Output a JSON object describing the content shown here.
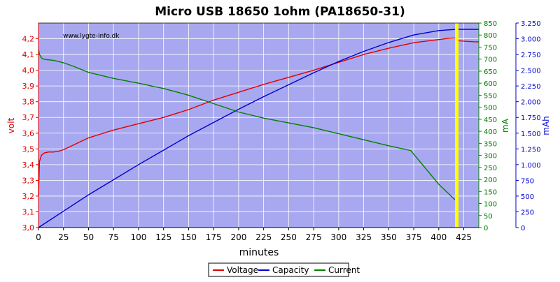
{
  "chart_data": {
    "type": "line",
    "title": "Micro USB 18650 1ohm (PA18650-31)",
    "watermark": "www.lygte-info.dk",
    "xlabel": "minutes",
    "xlim": [
      0,
      440
    ],
    "xticks": [
      0,
      25,
      50,
      75,
      100,
      125,
      150,
      175,
      200,
      225,
      250,
      275,
      300,
      325,
      350,
      375,
      400,
      425
    ],
    "grid": true,
    "legend_placement": "bottom-center",
    "plot_background": "#a8a8f0",
    "marker": {
      "x": 418,
      "color": "#ffff00"
    },
    "axes": {
      "left": {
        "label": "volt",
        "color": "#e00000",
        "lim": [
          3.0,
          4.3
        ],
        "ticks": [
          "3,0",
          "3,1",
          "3,2",
          "3,3",
          "3,4",
          "3,5",
          "3,6",
          "3,7",
          "3,8",
          "3,9",
          "4,0",
          "4,1",
          "4,2"
        ],
        "tick_values": [
          3.0,
          3.1,
          3.2,
          3.3,
          3.4,
          3.5,
          3.6,
          3.7,
          3.8,
          3.9,
          4.0,
          4.1,
          4.2
        ]
      },
      "right1": {
        "label": "mA",
        "color": "#008000",
        "lim": [
          0,
          850
        ],
        "ticks": [
          "0",
          "50",
          "100",
          "150",
          "200",
          "250",
          "300",
          "350",
          "400",
          "450",
          "500",
          "550",
          "600",
          "650",
          "700",
          "750",
          "800",
          "850"
        ],
        "tick_values": [
          0,
          50,
          100,
          150,
          200,
          250,
          300,
          350,
          400,
          450,
          500,
          550,
          600,
          650,
          700,
          750,
          800,
          850
        ]
      },
      "right2": {
        "label": "mAh",
        "color": "#0000cc",
        "lim": [
          0,
          3.25
        ],
        "ticks": [
          "0",
          "250",
          "500",
          "750",
          "1.000",
          "1.250",
          "1.500",
          "1.750",
          "2.000",
          "2.250",
          "2.500",
          "2.750",
          "3.000",
          "3.250"
        ],
        "tick_values": [
          0,
          0.25,
          0.5,
          0.75,
          1.0,
          1.25,
          1.5,
          1.75,
          2.0,
          2.25,
          2.5,
          2.75,
          3.0,
          3.25
        ]
      }
    },
    "series": [
      {
        "name": "Voltage",
        "color": "#e00000",
        "axis": "left",
        "x": [
          0,
          1,
          3,
          6,
          10,
          15,
          20,
          25,
          30,
          40,
          50,
          60,
          75,
          100,
          125,
          150,
          175,
          200,
          225,
          250,
          275,
          300,
          325,
          350,
          375,
          400,
          410,
          415,
          418,
          419,
          420,
          425,
          430,
          435,
          440
        ],
        "y": [
          3.2,
          3.42,
          3.46,
          3.475,
          3.48,
          3.48,
          3.485,
          3.495,
          3.51,
          3.54,
          3.57,
          3.59,
          3.62,
          3.66,
          3.7,
          3.75,
          3.81,
          3.86,
          3.91,
          3.955,
          4.0,
          4.05,
          4.1,
          4.14,
          4.175,
          4.195,
          4.203,
          4.205,
          4.205,
          4.193,
          4.187,
          4.185,
          4.183,
          4.181,
          4.18
        ]
      },
      {
        "name": "Capacity",
        "color": "#0000cc",
        "axis": "right2",
        "x": [
          0,
          25,
          50,
          75,
          100,
          125,
          150,
          175,
          200,
          225,
          250,
          275,
          300,
          325,
          350,
          375,
          400,
          418,
          425,
          440
        ],
        "y": [
          0.0,
          0.26,
          0.52,
          0.76,
          1.0,
          1.23,
          1.46,
          1.67,
          1.88,
          2.08,
          2.27,
          2.46,
          2.64,
          2.8,
          2.94,
          3.06,
          3.13,
          3.15,
          3.15,
          3.15
        ]
      },
      {
        "name": "Current",
        "color": "#008000",
        "axis": "right1",
        "x": [
          0,
          1,
          3,
          5,
          8,
          15,
          25,
          35,
          50,
          75,
          100,
          125,
          150,
          175,
          200,
          225,
          250,
          275,
          300,
          325,
          350,
          372,
          380,
          390,
          400,
          410,
          415,
          418
        ],
        "y": [
          740,
          720,
          705,
          700,
          698,
          695,
          685,
          670,
          645,
          620,
          600,
          578,
          550,
          515,
          480,
          455,
          435,
          415,
          390,
          365,
          340,
          320,
          280,
          230,
          180,
          140,
          120,
          110
        ]
      }
    ]
  }
}
